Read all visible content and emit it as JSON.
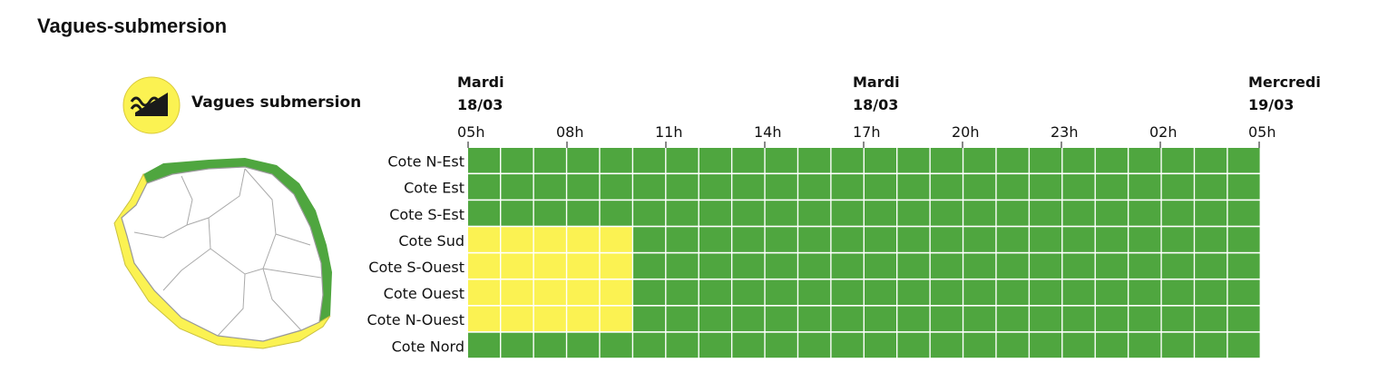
{
  "page": {
    "title": "Vagues-submersion"
  },
  "legend": {
    "label": "Vagues submersion",
    "icon": "waves-submersion-icon"
  },
  "map": {
    "icon": "reunion-island-map"
  },
  "colors": {
    "green": "#4fa63f",
    "yellow": "#fbf252",
    "grid_line": "#ffffff",
    "icon_bg": "#fbf252"
  },
  "chart_data": {
    "type": "heatmap",
    "title": "",
    "x_day_labels": [
      {
        "day": "Mardi",
        "date": "18/03",
        "at": "05h"
      },
      {
        "day": "Mardi",
        "date": "18/03",
        "at": "17h"
      },
      {
        "day": "Mercredi",
        "date": "19/03",
        "at": "05h"
      }
    ],
    "x_ticks": [
      "05h",
      "08h",
      "11h",
      "14h",
      "17h",
      "20h",
      "23h",
      "02h",
      "05h"
    ],
    "hours_per_tick": 3,
    "hours_per_cell": 1,
    "rows": [
      "Cote N-Est",
      "Cote Est",
      "Cote S-Est",
      "Cote Sud",
      "Cote S-Ouest",
      "Cote Ouest",
      "Cote N-Ouest",
      "Cote Nord"
    ],
    "levels": {
      "Cote N-Est": "green",
      "Cote Est": "green",
      "Cote S-Est": "green",
      "Cote Sud": "yellow from 05h to 10h, then green",
      "Cote S-Ouest": "yellow from 05h to 10h, then green",
      "Cote Ouest": "yellow from 05h to 10h, then green",
      "Cote N-Ouest": "yellow from 05h to 10h, then green",
      "Cote Nord": "green"
    },
    "yellow_hours": 5,
    "yellow_rows": [
      "Cote Sud",
      "Cote S-Ouest",
      "Cote Ouest",
      "Cote N-Ouest"
    ]
  }
}
